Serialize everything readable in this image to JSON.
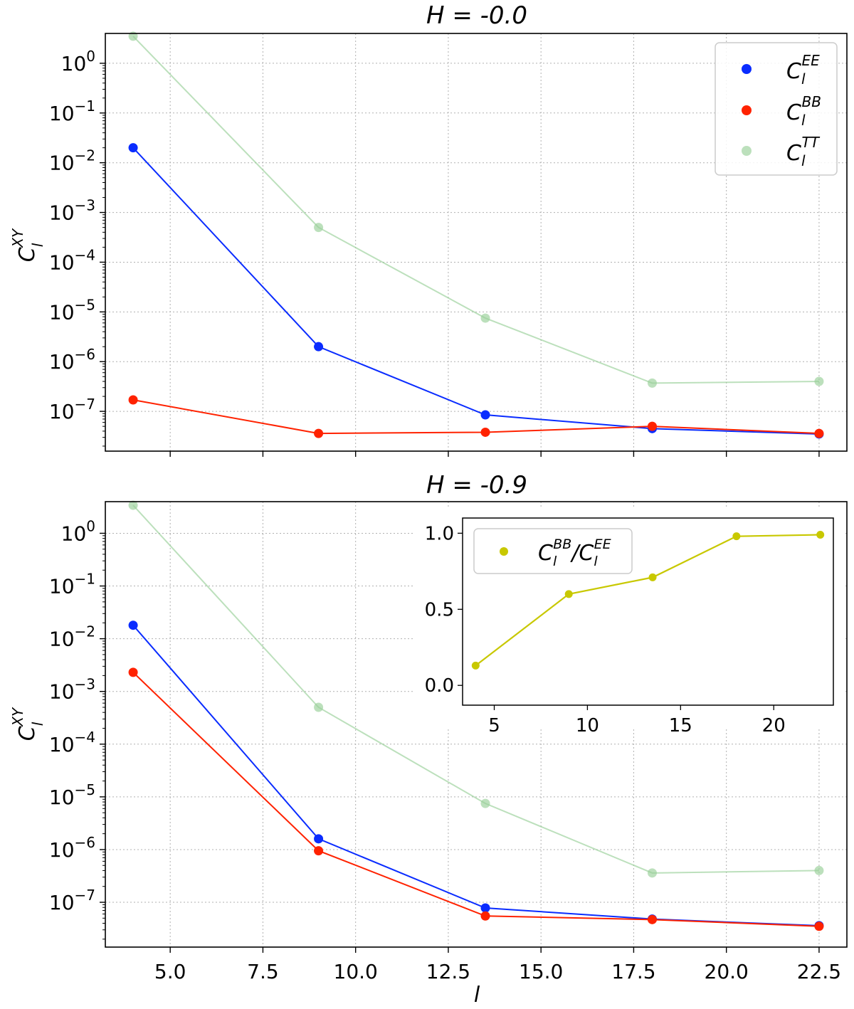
{
  "colors": {
    "EE": "#0a2cff",
    "BB": "#ff2200",
    "TT": "#98cf98",
    "ratio": "#c8c800"
  },
  "chart_data": [
    {
      "type": "line",
      "title": "H = -0.0",
      "xlabel": "",
      "ylabel": "C_l^XY",
      "yscale": "log",
      "x": [
        4,
        9,
        13.5,
        18,
        22.5
      ],
      "xlim": [
        3.25,
        23.25
      ],
      "ylim_log10": [
        -7.8,
        0.6
      ],
      "series": [
        {
          "name": "EE",
          "values": [
            0.02,
            2e-06,
            8.5e-08,
            4.5e-08,
            3.5e-08
          ]
        },
        {
          "name": "BB",
          "values": [
            1.7e-07,
            3.6e-08,
            3.8e-08,
            5e-08,
            3.6e-08
          ]
        },
        {
          "name": "TT",
          "values": [
            3.5,
            0.0005,
            7.5e-06,
            3.7e-07,
            4e-07
          ]
        }
      ],
      "legend_position": "top-right",
      "grid": true
    },
    {
      "type": "line",
      "title": "H = -0.9",
      "xlabel": "l",
      "ylabel": "C_l^XY",
      "yscale": "log",
      "x": [
        4,
        9,
        13.5,
        18,
        22.5
      ],
      "xlim": [
        3.25,
        23.25
      ],
      "ylim_log10": [
        -7.85,
        0.6
      ],
      "series": [
        {
          "name": "EE",
          "values": [
            0.018,
            1.6e-06,
            7.8e-08,
            4.8e-08,
            3.6e-08
          ]
        },
        {
          "name": "BB",
          "values": [
            0.0023,
            9.5e-07,
            5.5e-08,
            4.7e-08,
            3.5e-08
          ]
        },
        {
          "name": "TT",
          "values": [
            3.4,
            0.0005,
            7.5e-06,
            3.6e-07,
            4e-07
          ]
        }
      ],
      "grid": true,
      "inset": {
        "type": "line",
        "x": [
          4,
          9,
          13.5,
          18,
          22.5
        ],
        "values": [
          0.13,
          0.6,
          0.71,
          0.98,
          0.99
        ],
        "xlim": [
          3.3,
          23.2
        ],
        "ylim": [
          -0.13,
          1.1
        ],
        "xticks": [
          5,
          10,
          15,
          20
        ],
        "yticks": [
          0.0,
          0.5,
          1.0
        ],
        "legend_position": "top-left"
      }
    }
  ],
  "labels": {
    "top_title": "H = -0.0",
    "bottom_title": "H = -0.9",
    "xlabel": "l",
    "ylabel_base": "C",
    "ylabel_sup": "XY",
    "ylabel_sub": "l",
    "legend": {
      "ee_base": "C",
      "ee_sub": "l",
      "ee_sup": "EE",
      "bb_base": "C",
      "bb_sub": "l",
      "bb_sup": "BB",
      "tt_base": "C",
      "tt_sub": "l",
      "tt_sup": "TT"
    },
    "inset_legend": {
      "num_base": "C",
      "num_sub": "l",
      "num_sup": "BB",
      "slash": "/",
      "den_base": "C",
      "den_sub": "l",
      "den_sup": "EE"
    },
    "ytick_base": "10",
    "ytick_exps": [
      "0",
      "−1",
      "−2",
      "−3",
      "−4",
      "−5",
      "−6",
      "−7"
    ],
    "xticks": [
      "5.0",
      "7.5",
      "10.0",
      "12.5",
      "15.0",
      "17.5",
      "20.0",
      "22.5"
    ],
    "inset_xticks": [
      "5",
      "10",
      "15",
      "20"
    ],
    "inset_yticks": [
      "0.0",
      "0.5",
      "1.0"
    ]
  }
}
